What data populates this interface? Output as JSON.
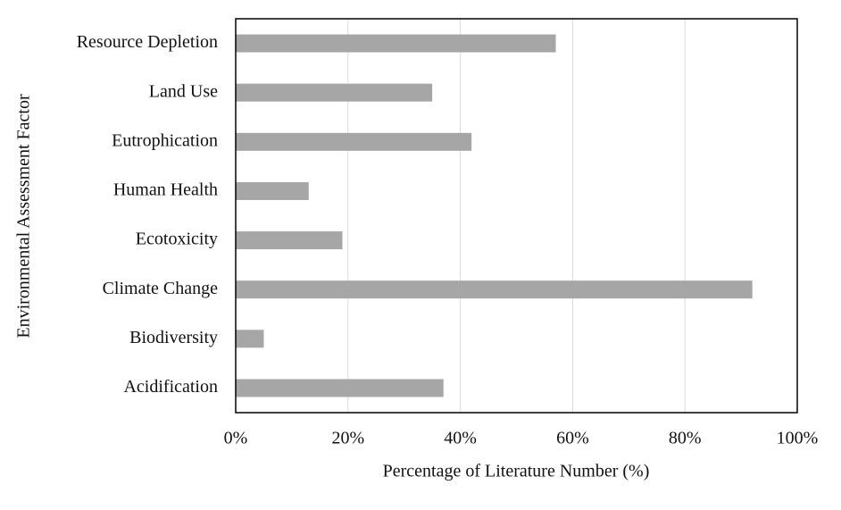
{
  "chart_data": {
    "type": "bar",
    "orientation": "horizontal",
    "x_label": "Percentage of Literature Number (%)",
    "y_label": "Environmental  Assessment Factor",
    "categories": [
      "Resource Depletion",
      "Land Use",
      "Eutrophication",
      "Human Health",
      "Ecotoxicity",
      "Climate Change",
      "Biodiversity",
      "Acidification"
    ],
    "values": [
      57,
      35,
      42,
      13,
      19,
      92,
      5,
      37
    ],
    "color": "#a6a6a6",
    "xlim": [
      0,
      100
    ],
    "xticks": [
      {
        "value": 0,
        "label": "0%"
      },
      {
        "value": 20,
        "label": "20%"
      },
      {
        "value": 40,
        "label": "40%"
      },
      {
        "value": 60,
        "label": "60%"
      },
      {
        "value": 80,
        "label": "80%"
      },
      {
        "value": 100,
        "label": "100%"
      }
    ],
    "grid": true
  }
}
